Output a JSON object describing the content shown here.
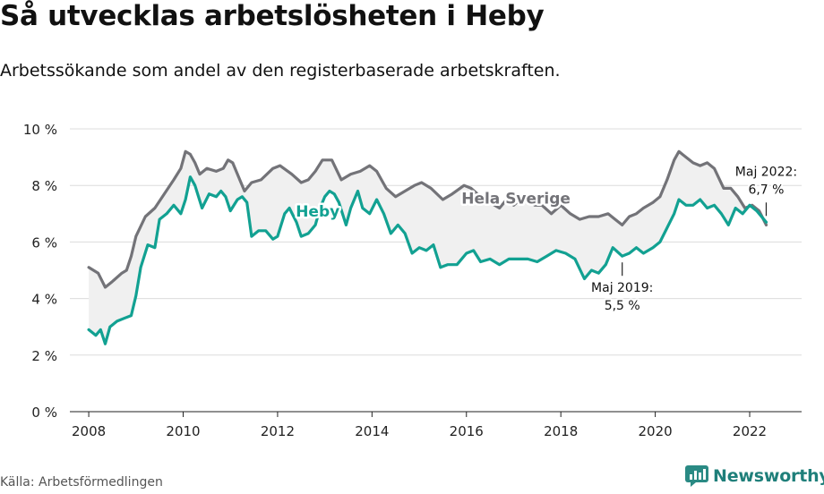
{
  "title": "Så utvecklas arbetslösheten i Heby",
  "subtitle": "Arbetssökande som andel av den registerbaserade arbetskraften.",
  "source": "Källa: Arbetsförmedlingen",
  "brand": "Newsworthy",
  "colors": {
    "sweden": "#737378",
    "heby": "#12a192",
    "band": "#f0f0f0",
    "grid": "#dcdcdc",
    "brand": "#1f7f7a"
  },
  "chart_data": {
    "type": "line",
    "title": "Så utvecklas arbetslösheten i Heby",
    "ylim": [
      0,
      10
    ],
    "xlim": [
      2007.6,
      2023.1
    ],
    "y_ticks": [
      {
        "value": 0,
        "label": "0 %"
      },
      {
        "value": 2,
        "label": "2 %"
      },
      {
        "value": 4,
        "label": "4 %"
      },
      {
        "value": 6,
        "label": "6 %"
      },
      {
        "value": 8,
        "label": "8 %"
      },
      {
        "value": 10,
        "label": "10 %"
      }
    ],
    "x_ticks": [
      {
        "value": 2008,
        "label": "2008"
      },
      {
        "value": 2010,
        "label": "2010"
      },
      {
        "value": 2012,
        "label": "2012"
      },
      {
        "value": 2014,
        "label": "2014"
      },
      {
        "value": 2016,
        "label": "2016"
      },
      {
        "value": 2018,
        "label": "2018"
      },
      {
        "value": 2020,
        "label": "2020"
      },
      {
        "value": 2022,
        "label": "2022"
      }
    ],
    "grid": true,
    "series": [
      {
        "name": "Hela Sverige",
        "points": [
          [
            2008.0,
            5.1
          ],
          [
            2008.2,
            4.9
          ],
          [
            2008.35,
            4.4
          ],
          [
            2008.5,
            4.6
          ],
          [
            2008.7,
            4.9
          ],
          [
            2008.8,
            5.0
          ],
          [
            2008.9,
            5.5
          ],
          [
            2009.0,
            6.2
          ],
          [
            2009.2,
            6.9
          ],
          [
            2009.4,
            7.2
          ],
          [
            2009.6,
            7.7
          ],
          [
            2009.8,
            8.2
          ],
          [
            2009.95,
            8.6
          ],
          [
            2010.05,
            9.2
          ],
          [
            2010.15,
            9.1
          ],
          [
            2010.25,
            8.8
          ],
          [
            2010.35,
            8.4
          ],
          [
            2010.5,
            8.6
          ],
          [
            2010.7,
            8.5
          ],
          [
            2010.85,
            8.6
          ],
          [
            2010.95,
            8.9
          ],
          [
            2011.05,
            8.8
          ],
          [
            2011.3,
            7.8
          ],
          [
            2011.45,
            8.1
          ],
          [
            2011.65,
            8.2
          ],
          [
            2011.9,
            8.6
          ],
          [
            2012.05,
            8.7
          ],
          [
            2012.3,
            8.4
          ],
          [
            2012.5,
            8.1
          ],
          [
            2012.65,
            8.2
          ],
          [
            2012.8,
            8.5
          ],
          [
            2012.95,
            8.9
          ],
          [
            2013.15,
            8.9
          ],
          [
            2013.35,
            8.2
          ],
          [
            2013.55,
            8.4
          ],
          [
            2013.75,
            8.5
          ],
          [
            2013.95,
            8.7
          ],
          [
            2014.1,
            8.5
          ],
          [
            2014.3,
            7.9
          ],
          [
            2014.5,
            7.6
          ],
          [
            2014.7,
            7.8
          ],
          [
            2014.9,
            8.0
          ],
          [
            2015.05,
            8.1
          ],
          [
            2015.25,
            7.9
          ],
          [
            2015.5,
            7.5
          ],
          [
            2015.7,
            7.7
          ],
          [
            2015.95,
            8.0
          ],
          [
            2016.1,
            7.9
          ],
          [
            2016.3,
            7.6
          ],
          [
            2016.5,
            7.4
          ],
          [
            2016.7,
            7.2
          ],
          [
            2016.85,
            7.5
          ],
          [
            2017.0,
            7.3
          ],
          [
            2017.2,
            7.6
          ],
          [
            2017.45,
            7.3
          ],
          [
            2017.6,
            7.3
          ],
          [
            2017.8,
            7.0
          ],
          [
            2018.0,
            7.3
          ],
          [
            2018.2,
            7.0
          ],
          [
            2018.4,
            6.8
          ],
          [
            2018.6,
            6.9
          ],
          [
            2018.8,
            6.9
          ],
          [
            2019.0,
            7.0
          ],
          [
            2019.15,
            6.8
          ],
          [
            2019.3,
            6.6
          ],
          [
            2019.45,
            6.9
          ],
          [
            2019.6,
            7.0
          ],
          [
            2019.75,
            7.2
          ],
          [
            2019.95,
            7.4
          ],
          [
            2020.1,
            7.6
          ],
          [
            2020.25,
            8.2
          ],
          [
            2020.4,
            8.9
          ],
          [
            2020.5,
            9.2
          ],
          [
            2020.65,
            9.0
          ],
          [
            2020.8,
            8.8
          ],
          [
            2020.95,
            8.7
          ],
          [
            2021.1,
            8.8
          ],
          [
            2021.25,
            8.6
          ],
          [
            2021.45,
            7.9
          ],
          [
            2021.6,
            7.9
          ],
          [
            2021.75,
            7.6
          ],
          [
            2021.9,
            7.2
          ],
          [
            2022.05,
            7.3
          ],
          [
            2022.2,
            7.1
          ],
          [
            2022.35,
            6.6
          ]
        ]
      },
      {
        "name": "Heby",
        "points": [
          [
            2008.0,
            2.9
          ],
          [
            2008.15,
            2.7
          ],
          [
            2008.25,
            2.9
          ],
          [
            2008.35,
            2.4
          ],
          [
            2008.45,
            3.0
          ],
          [
            2008.6,
            3.2
          ],
          [
            2008.75,
            3.3
          ],
          [
            2008.9,
            3.4
          ],
          [
            2009.0,
            4.1
          ],
          [
            2009.1,
            5.1
          ],
          [
            2009.25,
            5.9
          ],
          [
            2009.4,
            5.8
          ],
          [
            2009.5,
            6.8
          ],
          [
            2009.65,
            7.0
          ],
          [
            2009.8,
            7.3
          ],
          [
            2009.95,
            7.0
          ],
          [
            2010.05,
            7.5
          ],
          [
            2010.15,
            8.3
          ],
          [
            2010.25,
            8.0
          ],
          [
            2010.4,
            7.2
          ],
          [
            2010.55,
            7.7
          ],
          [
            2010.7,
            7.6
          ],
          [
            2010.8,
            7.8
          ],
          [
            2010.9,
            7.6
          ],
          [
            2011.0,
            7.1
          ],
          [
            2011.15,
            7.5
          ],
          [
            2011.25,
            7.6
          ],
          [
            2011.35,
            7.4
          ],
          [
            2011.45,
            6.2
          ],
          [
            2011.6,
            6.4
          ],
          [
            2011.75,
            6.4
          ],
          [
            2011.9,
            6.1
          ],
          [
            2012.0,
            6.2
          ],
          [
            2012.15,
            7.0
          ],
          [
            2012.25,
            7.2
          ],
          [
            2012.4,
            6.7
          ],
          [
            2012.5,
            6.2
          ],
          [
            2012.65,
            6.3
          ],
          [
            2012.8,
            6.6
          ],
          [
            2012.9,
            7.2
          ],
          [
            2013.0,
            7.6
          ],
          [
            2013.1,
            7.8
          ],
          [
            2013.2,
            7.7
          ],
          [
            2013.3,
            7.4
          ],
          [
            2013.45,
            6.6
          ],
          [
            2013.55,
            7.2
          ],
          [
            2013.7,
            7.8
          ],
          [
            2013.8,
            7.2
          ],
          [
            2013.95,
            7.0
          ],
          [
            2014.1,
            7.5
          ],
          [
            2014.25,
            7.0
          ],
          [
            2014.4,
            6.3
          ],
          [
            2014.55,
            6.6
          ],
          [
            2014.7,
            6.3
          ],
          [
            2014.85,
            5.6
          ],
          [
            2015.0,
            5.8
          ],
          [
            2015.15,
            5.7
          ],
          [
            2015.3,
            5.9
          ],
          [
            2015.45,
            5.1
          ],
          [
            2015.6,
            5.2
          ],
          [
            2015.8,
            5.2
          ],
          [
            2016.0,
            5.6
          ],
          [
            2016.15,
            5.7
          ],
          [
            2016.3,
            5.3
          ],
          [
            2016.5,
            5.4
          ],
          [
            2016.7,
            5.2
          ],
          [
            2016.9,
            5.4
          ],
          [
            2017.1,
            5.4
          ],
          [
            2017.3,
            5.4
          ],
          [
            2017.5,
            5.3
          ],
          [
            2017.7,
            5.5
          ],
          [
            2017.9,
            5.7
          ],
          [
            2018.1,
            5.6
          ],
          [
            2018.3,
            5.4
          ],
          [
            2018.5,
            4.7
          ],
          [
            2018.65,
            5.0
          ],
          [
            2018.8,
            4.9
          ],
          [
            2018.95,
            5.2
          ],
          [
            2019.1,
            5.8
          ],
          [
            2019.3,
            5.5
          ],
          [
            2019.45,
            5.6
          ],
          [
            2019.6,
            5.8
          ],
          [
            2019.75,
            5.6
          ],
          [
            2019.95,
            5.8
          ],
          [
            2020.1,
            6.0
          ],
          [
            2020.25,
            6.5
          ],
          [
            2020.4,
            7.0
          ],
          [
            2020.5,
            7.5
          ],
          [
            2020.65,
            7.3
          ],
          [
            2020.8,
            7.3
          ],
          [
            2020.95,
            7.5
          ],
          [
            2021.1,
            7.2
          ],
          [
            2021.25,
            7.3
          ],
          [
            2021.4,
            7.0
          ],
          [
            2021.55,
            6.6
          ],
          [
            2021.7,
            7.2
          ],
          [
            2021.85,
            7.0
          ],
          [
            2022.0,
            7.3
          ],
          [
            2022.15,
            7.1
          ],
          [
            2022.35,
            6.7
          ]
        ]
      }
    ],
    "series_labels": [
      {
        "series": "Hela Sverige",
        "text": "Hela Sverige",
        "x": 2017.05,
        "y": 7.35
      },
      {
        "series": "Heby",
        "text": "Heby",
        "x": 2012.85,
        "y": 6.9
      }
    ],
    "annotations": [
      {
        "line1": "Maj 2019:",
        "line2": "5,5 %",
        "x": 2019.3,
        "y": 5.5,
        "placement": "below"
      },
      {
        "line1": "Maj 2022:",
        "line2": "6,7 %",
        "x": 2022.35,
        "y": 6.7,
        "placement": "above"
      }
    ]
  }
}
